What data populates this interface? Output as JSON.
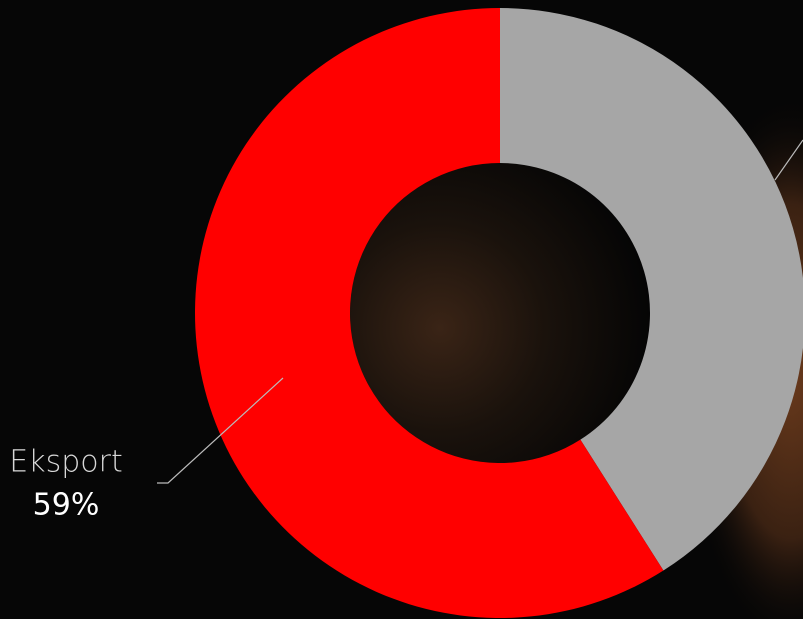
{
  "chart_data": {
    "type": "donut",
    "categories": [
      null,
      "Eksport"
    ],
    "values": [
      41,
      59
    ],
    "value_labels": [
      null,
      "59%"
    ],
    "colors": [
      "#a6a6a6",
      "#ff0000"
    ]
  }
}
